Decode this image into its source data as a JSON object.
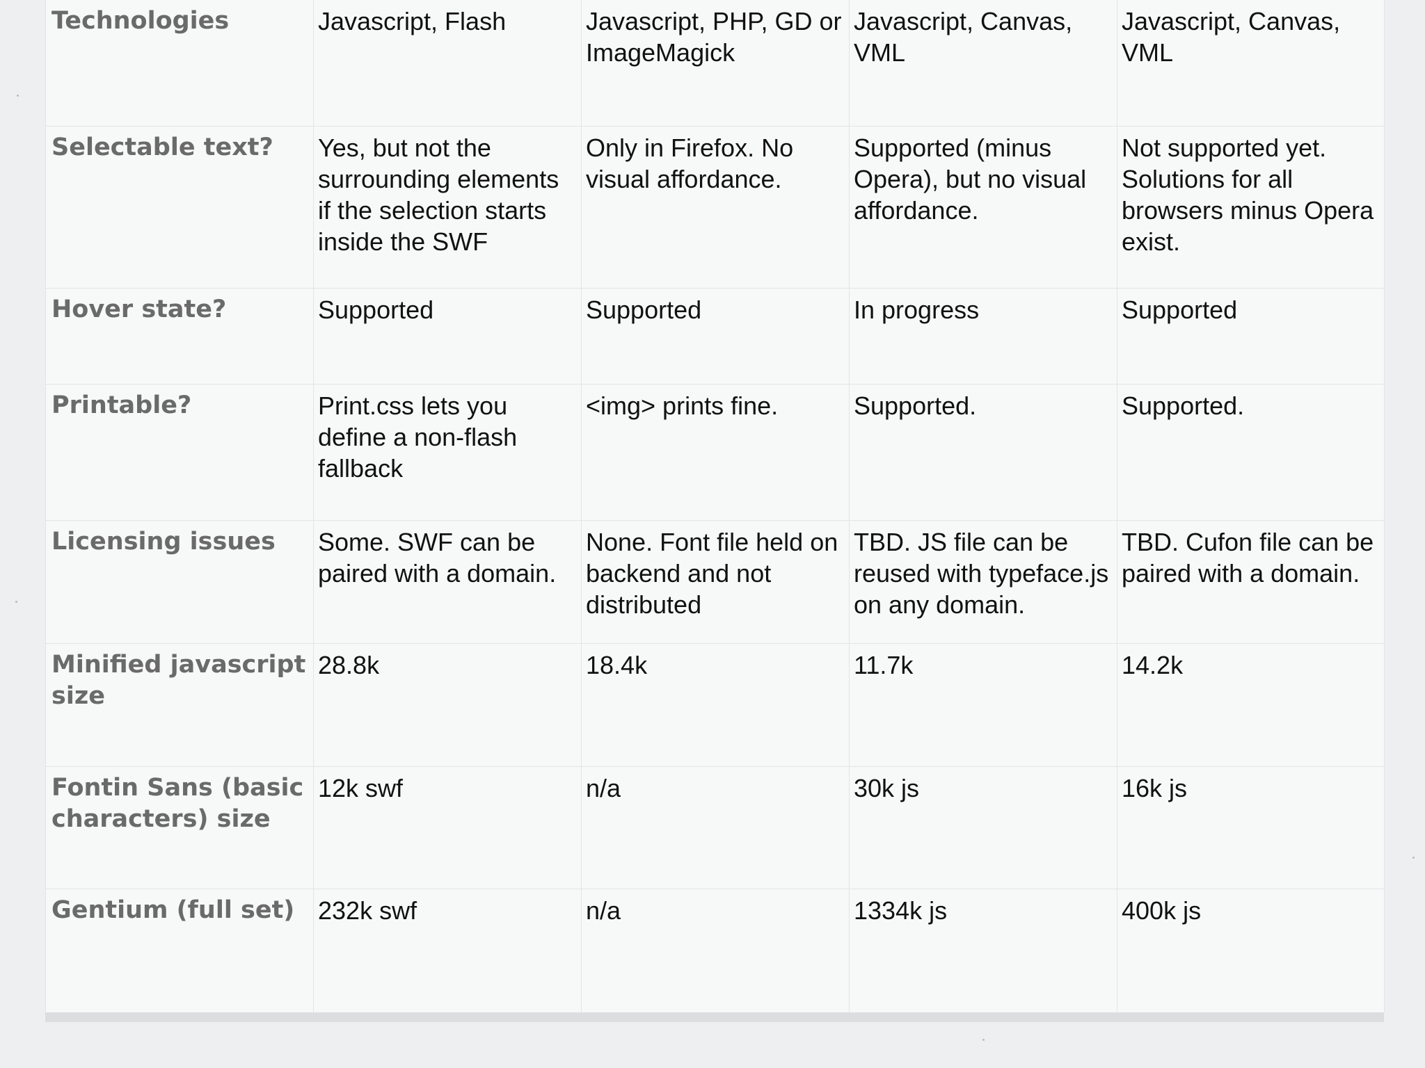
{
  "rows": [
    {
      "label": "Technologies",
      "cells": [
        "Javascript, Flash",
        "Javascript, PHP,  GD or ImageMagick",
        "Javascript, Canvas, VML",
        "Javascript, Canvas, VML"
      ]
    },
    {
      "label": "Selectable text?",
      "cells": [
        "Yes, but not the surrounding elements if the selection starts inside the SWF",
        "Only in Firefox. No visual affordance.",
        "Supported (minus Opera), but no visual affordance.",
        "Not supported yet. Solutions for all browsers minus Opera exist."
      ]
    },
    {
      "label": "Hover state?",
      "cells": [
        "Supported",
        "Supported",
        "In progress",
        "Supported"
      ]
    },
    {
      "label": "Printable?",
      "cells": [
        "Print.css lets you define a non-flash fallback",
        "<img> prints fine.",
        "Supported.",
        "Supported."
      ]
    },
    {
      "label": "Licensing issues",
      "cells": [
        "Some. SWF can be paired with a domain.",
        "None. Font file held on backend and not distributed",
        "TBD. JS file can be reused with typeface.js on any domain.",
        "TBD. Cufon file can be paired with a domain."
      ]
    },
    {
      "label": "Minified javascript size",
      "cells": [
        "28.8k",
        "18.4k",
        "11.7k",
        "14.2k"
      ]
    },
    {
      "label": "Fontin Sans (basic characters) size",
      "cells": [
        "12k swf",
        "n/a",
        "30k js",
        "16k js"
      ]
    },
    {
      "label": "Gentium (full set)",
      "cells": [
        "232k swf",
        "n/a",
        "1334k js",
        "400k js"
      ]
    }
  ]
}
